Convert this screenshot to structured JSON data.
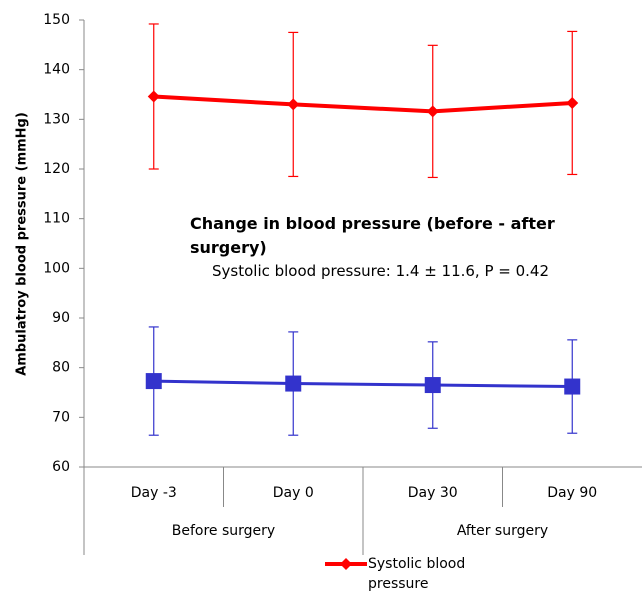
{
  "chart_data": {
    "type": "line",
    "y_label": "Ambulatroy blood pressure (mmHg)",
    "categories": [
      "Day -3",
      "Day 0",
      "Day 30",
      "Day 90"
    ],
    "groups": [
      {
        "label": "Before surgery",
        "span": 2
      },
      {
        "label": "After surgery",
        "span": 2
      }
    ],
    "series": [
      {
        "name": "Systolic blood pressure",
        "color": "#ff0000",
        "marker": "diamond",
        "values": [
          134.6,
          133,
          131.6,
          133.3
        ],
        "errors": [
          14.6,
          14.5,
          13.3,
          14.4
        ]
      },
      {
        "color": "#3333cc",
        "marker": "square",
        "values": [
          77.3,
          76.8,
          76.5,
          76.2
        ],
        "errors": [
          10.9,
          10.4,
          8.7,
          9.4
        ]
      }
    ],
    "annotations": [
      "Change in blood pressure (before - after surgery)",
      "Systolic blood pressure: 1.4 ± 11.6, P = 0.42"
    ],
    "ylim": [
      60,
      150
    ],
    "yticks": [
      60,
      70,
      80,
      90,
      100,
      110,
      120,
      130,
      140,
      150
    ],
    "grid": false,
    "legend": "bottom"
  }
}
